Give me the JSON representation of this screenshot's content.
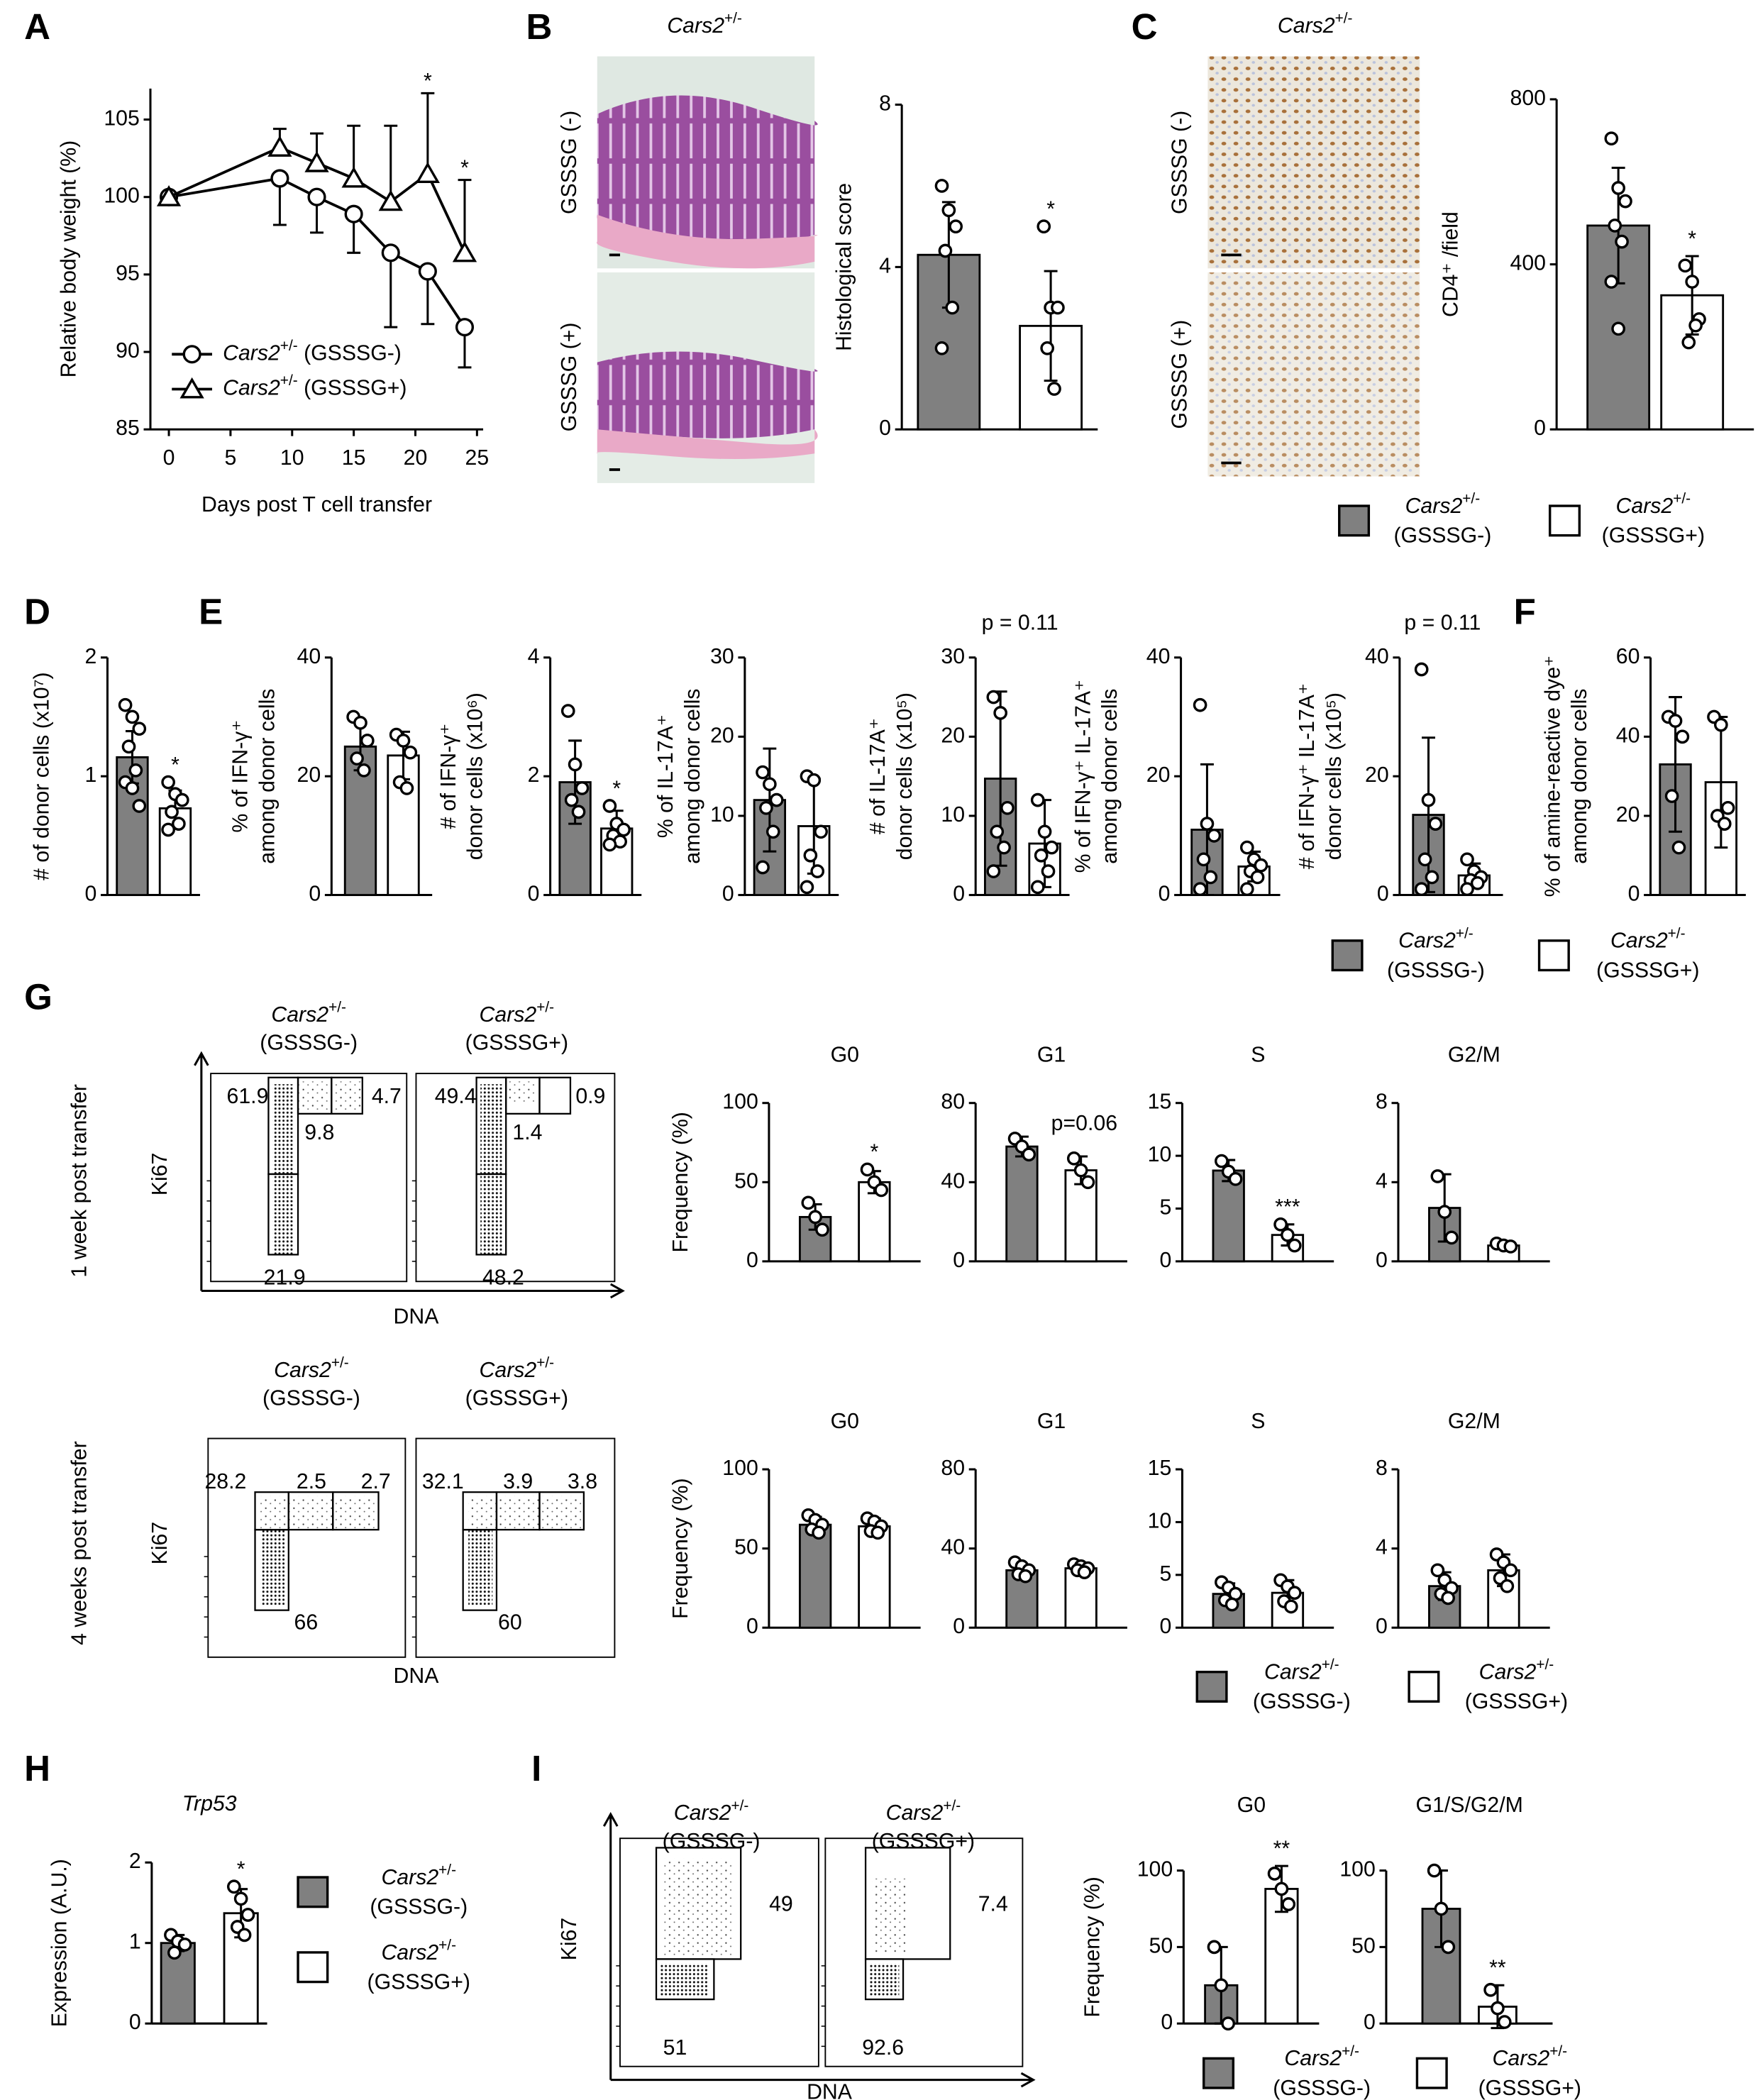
{
  "panels": [
    "A",
    "B",
    "C",
    "D",
    "E",
    "F",
    "G",
    "H",
    "I"
  ],
  "chart_data": [
    {
      "type": "line",
      "xlabel": "Days post T cell transfer",
      "ylabel": "Relative body weight (%)",
      "x": [
        0,
        9,
        12,
        15,
        18,
        21,
        24
      ],
      "xlim": [
        -1.5,
        25.5
      ],
      "xticks": [
        0,
        5,
        10,
        15,
        20,
        25
      ],
      "ylim": [
        85,
        107
      ],
      "yticks": [
        85,
        90,
        95,
        100,
        105
      ],
      "legend": "lower left",
      "series": [
        {
          "name": "Cars2+/- (GSSSG-)",
          "marker": "circle",
          "color": "#000000",
          "values": [
            100,
            101.2,
            100,
            98.9,
            96.4,
            95.2,
            91.6
          ],
          "errors": [
            0,
            3,
            2.3,
            2.5,
            4.8,
            3.4,
            2.6
          ],
          "error_direction": "down"
        },
        {
          "name": "Cars2+/- (GSSSG+)",
          "marker": "triangle",
          "color": "#000000",
          "values": [
            100,
            103.2,
            102.2,
            101.2,
            99.7,
            101.5,
            96.4
          ],
          "errors": [
            0,
            1.2,
            1.9,
            3.4,
            4.9,
            5.2,
            4.7
          ],
          "error_direction": "up"
        }
      ],
      "sig": [
        null,
        null,
        null,
        null,
        null,
        "*",
        "*"
      ]
    },
    {
      "type": "bar",
      "categories": [
        null,
        null
      ],
      "colors": [
        "#808080",
        "#ffffff"
      ],
      "values": [
        4.3,
        2.55
      ],
      "errors": [
        1.3,
        1.35
      ],
      "points": [
        [
          6,
          5.4,
          5,
          4.4,
          3,
          2
        ],
        [
          5,
          3,
          3,
          2,
          1
        ]
      ],
      "ylim": [
        0,
        8
      ],
      "yticks": [
        0,
        4,
        8
      ],
      "ylabel": [
        "Histological score"
      ],
      "sig": [
        null,
        "*"
      ]
    },
    {
      "type": "bar",
      "categories": [
        null,
        null
      ],
      "colors": [
        "#808080",
        "#ffffff"
      ],
      "values": [
        494,
        325
      ],
      "errors": [
        140,
        95
      ],
      "points": [
        [
          705,
          585,
          553,
          494,
          455,
          358,
          244
        ],
        [
          397,
          358,
          267,
          211,
          252
        ]
      ],
      "ylim": [
        0,
        800
      ],
      "yticks": [
        0,
        400,
        800
      ],
      "ylabel": [
        "CD4⁺ /field"
      ],
      "sig": [
        null,
        "*"
      ]
    },
    {
      "type": "bar",
      "categories": [
        null,
        null
      ],
      "colors": [
        "#808080",
        "#ffffff"
      ],
      "values": [
        1.16,
        0.73
      ],
      "errors": [
        0.22,
        0.15
      ],
      "points": [
        [
          1.6,
          1.5,
          1.4,
          1.25,
          1.05,
          0.95,
          0.9,
          0.75
        ],
        [
          0.95,
          0.85,
          0.8,
          0.7,
          0.6,
          0.55
        ]
      ],
      "ylim": [
        0,
        2
      ],
      "yticks": [
        0,
        1,
        2
      ],
      "ylabel": [
        "# of donor cells (x10⁷)"
      ],
      "sig": [
        null,
        "*"
      ]
    },
    {
      "type": "bar",
      "categories": [
        null,
        null
      ],
      "colors": [
        "#808080",
        "#ffffff"
      ],
      "values": [
        25,
        23.5
      ],
      "errors": [
        4,
        4
      ],
      "points": [
        [
          30,
          29,
          26,
          23,
          21
        ],
        [
          27,
          26,
          24,
          19,
          18
        ]
      ],
      "ylim": [
        0,
        40
      ],
      "yticks": [
        0,
        20,
        40
      ],
      "ylabel": [
        "% of IFN-γ⁺",
        "among donor cells"
      ]
    },
    {
      "type": "bar",
      "categories": [
        null,
        null
      ],
      "colors": [
        "#808080",
        "#ffffff"
      ],
      "values": [
        1.9,
        1.12
      ],
      "errors": [
        0.7,
        0.3
      ],
      "points": [
        [
          3.1,
          2.2,
          1.8,
          1.6,
          1.4
        ],
        [
          1.5,
          1.2,
          1.1,
          1,
          0.9,
          0.85
        ]
      ],
      "ylim": [
        0,
        4
      ],
      "yticks": [
        0,
        2,
        4
      ],
      "ylabel": [
        "# of IFN-γ⁺",
        "donor cells (x10⁶)"
      ],
      "sig": [
        null,
        "*"
      ]
    },
    {
      "type": "bar",
      "categories": [
        null,
        null
      ],
      "colors": [
        "#808080",
        "#ffffff"
      ],
      "values": [
        12,
        8.7
      ],
      "errors": [
        6.5,
        6
      ],
      "points": [
        [
          15.5,
          14,
          12,
          11,
          8,
          3.5
        ],
        [
          15,
          14.5,
          8,
          5,
          3,
          1
        ]
      ],
      "ylim": [
        0,
        30
      ],
      "yticks": [
        0,
        10,
        20,
        30
      ],
      "ylabel": [
        "% of IL-17A⁺",
        "among donor cells"
      ]
    },
    {
      "type": "bar",
      "categories": [
        null,
        null
      ],
      "colors": [
        "#808080",
        "#ffffff"
      ],
      "values": [
        14.7,
        6.5
      ],
      "errors": [
        11,
        5.5
      ],
      "points": [
        [
          25,
          23,
          11,
          8,
          6,
          3
        ],
        [
          12,
          8,
          6,
          5,
          3,
          1
        ]
      ],
      "ylim": [
        0,
        30
      ],
      "yticks": [
        0,
        10,
        20,
        30
      ],
      "ylabel": [
        "# of IL-17A⁺",
        "donor cells (x10⁵)"
      ],
      "note": "p = 0.11"
    },
    {
      "type": "bar",
      "categories": [
        null,
        null
      ],
      "colors": [
        "#808080",
        "#ffffff"
      ],
      "values": [
        11,
        4.8
      ],
      "errors": [
        11,
        2.5
      ],
      "points": [
        [
          32,
          12,
          10,
          6,
          3,
          1
        ],
        [
          8,
          6,
          5,
          4,
          3,
          1
        ]
      ],
      "ylim": [
        0,
        40
      ],
      "yticks": [
        0,
        20,
        40
      ],
      "ylabel": [
        "% of IFN-γ⁺ IL-17A⁺",
        "among donor cells"
      ]
    },
    {
      "type": "bar",
      "categories": [
        null,
        null
      ],
      "colors": [
        "#808080",
        "#ffffff"
      ],
      "values": [
        13.5,
        3.3
      ],
      "errors": [
        13,
        2
      ],
      "points": [
        [
          38,
          16,
          12,
          6,
          3,
          1
        ],
        [
          6,
          4,
          3,
          2.5,
          2,
          1
        ]
      ],
      "ylim": [
        0,
        40
      ],
      "yticks": [
        0,
        20,
        40
      ],
      "ylabel": [
        "# of IFN-γ⁺ IL-17A⁺",
        "donor cells (x10⁵)"
      ],
      "note": "p = 0.11"
    },
    {
      "type": "bar",
      "categories": [
        null,
        null
      ],
      "colors": [
        "#808080",
        "#ffffff"
      ],
      "values": [
        33,
        28.5
      ],
      "errors": [
        17,
        16.5
      ],
      "points": [
        [
          45,
          44,
          40,
          25,
          12
        ],
        [
          45,
          43,
          22,
          20,
          18
        ]
      ],
      "ylim": [
        0,
        60
      ],
      "yticks": [
        0,
        20,
        40,
        60
      ],
      "ylabel": [
        "% of amine-reactive dye⁺",
        "among donor cells"
      ]
    },
    {
      "type": "bar",
      "title": "G0",
      "categories": [
        null,
        null
      ],
      "colors": [
        "#808080",
        "#ffffff"
      ],
      "values": [
        28,
        50
      ],
      "errors": [
        8,
        7
      ],
      "points": [
        [
          37,
          28,
          20
        ],
        [
          58,
          50,
          45
        ]
      ],
      "ylim": [
        0,
        100
      ],
      "yticks": [
        0,
        50,
        100
      ],
      "ylabel": [
        "Frequency (%)"
      ],
      "sig": [
        null,
        "*"
      ]
    },
    {
      "type": "bar",
      "title": "G1",
      "categories": [
        null,
        null
      ],
      "colors": [
        "#808080",
        "#ffffff"
      ],
      "values": [
        58,
        46
      ],
      "errors": [
        5,
        7
      ],
      "points": [
        [
          62,
          58,
          54
        ],
        [
          52,
          46,
          40
        ]
      ],
      "ylim": [
        0,
        80
      ],
      "yticks": [
        0,
        40,
        80
      ],
      "note": "p=0.06"
    },
    {
      "type": "bar",
      "title": "S",
      "categories": [
        null,
        null
      ],
      "colors": [
        "#808080",
        "#ffffff"
      ],
      "values": [
        8.6,
        2.5
      ],
      "errors": [
        1,
        1
      ],
      "points": [
        [
          9.5,
          8.5,
          7.8
        ],
        [
          3.5,
          2.5,
          1.5
        ]
      ],
      "ylim": [
        0,
        15
      ],
      "yticks": [
        0,
        5,
        10,
        15
      ],
      "sig": [
        null,
        "***"
      ]
    },
    {
      "type": "bar",
      "title": "G2/M",
      "categories": [
        null,
        null
      ],
      "colors": [
        "#808080",
        "#ffffff"
      ],
      "values": [
        2.7,
        0.8
      ],
      "errors": [
        1.7,
        0.1
      ],
      "points": [
        [
          4.3,
          2.5,
          1.2
        ],
        [
          0.9,
          0.8,
          0.75
        ]
      ],
      "ylim": [
        0,
        8
      ],
      "yticks": [
        0,
        4,
        8
      ]
    },
    {
      "type": "bar",
      "title": "G0",
      "categories": [
        null,
        null
      ],
      "colors": [
        "#808080",
        "#ffffff"
      ],
      "values": [
        65,
        64
      ],
      "errors": [
        5,
        5
      ],
      "points": [
        [
          71,
          68,
          65,
          62,
          60
        ],
        [
          69,
          67,
          64,
          61,
          60
        ]
      ],
      "ylim": [
        0,
        100
      ],
      "yticks": [
        0,
        50,
        100
      ],
      "ylabel": [
        "Frequency (%)"
      ]
    },
    {
      "type": "bar",
      "title": "G1",
      "categories": [
        null,
        null
      ],
      "colors": [
        "#808080",
        "#ffffff"
      ],
      "values": [
        29,
        30
      ],
      "errors": [
        3,
        2
      ],
      "points": [
        [
          33,
          31,
          29,
          27,
          26
        ],
        [
          32,
          31,
          30,
          29,
          28
        ]
      ],
      "ylim": [
        0,
        80
      ],
      "yticks": [
        0,
        40,
        80
      ]
    },
    {
      "type": "bar",
      "title": "S",
      "categories": [
        null,
        null
      ],
      "colors": [
        "#808080",
        "#ffffff"
      ],
      "values": [
        3.2,
        3.3
      ],
      "errors": [
        1,
        1.2
      ],
      "points": [
        [
          4.3,
          3.8,
          3.2,
          2.6,
          2.2
        ],
        [
          4.5,
          3.9,
          3.3,
          2.5,
          2
        ]
      ],
      "ylim": [
        0,
        15
      ],
      "yticks": [
        0,
        5,
        10,
        15
      ]
    },
    {
      "type": "bar",
      "title": "G2/M",
      "categories": [
        null,
        null
      ],
      "colors": [
        "#808080",
        "#ffffff"
      ],
      "values": [
        2.1,
        2.9
      ],
      "errors": [
        0.7,
        0.8
      ],
      "points": [
        [
          2.9,
          2.4,
          2,
          1.7,
          1.5
        ],
        [
          3.7,
          3.3,
          2.9,
          2.5,
          2.1
        ]
      ],
      "ylim": [
        0,
        8
      ],
      "yticks": [
        0,
        4,
        8
      ]
    },
    {
      "type": "bar",
      "title": "Trp53",
      "categories": [
        null,
        null
      ],
      "colors": [
        "#808080",
        "#ffffff"
      ],
      "values": [
        1.0,
        1.37
      ],
      "errors": [
        0.1,
        0.3
      ],
      "points": [
        [
          1.1,
          1.02,
          0.98,
          0.88
        ],
        [
          1.7,
          1.55,
          1.35,
          1.2,
          1.1
        ]
      ],
      "ylim": [
        0,
        2
      ],
      "yticks": [
        0,
        1,
        2
      ],
      "ylabel": [
        "Expression (A.U.)"
      ],
      "sig": [
        null,
        "*"
      ]
    },
    {
      "type": "bar",
      "title": "G0",
      "categories": [
        null,
        null
      ],
      "colors": [
        "#808080",
        "#ffffff"
      ],
      "values": [
        25,
        88
      ],
      "errors": [
        25,
        15
      ],
      "points": [
        [
          50,
          25,
          0
        ],
        [
          98,
          88,
          78
        ]
      ],
      "ylim": [
        0,
        100
      ],
      "yticks": [
        0,
        50,
        100
      ],
      "ylabel": [
        "Frequency (%)"
      ],
      "sig": [
        null,
        "**"
      ]
    },
    {
      "type": "bar",
      "title": "G1/S/G2/M",
      "categories": [
        null,
        null
      ],
      "colors": [
        "#808080",
        "#ffffff"
      ],
      "values": [
        75,
        11
      ],
      "errors": [
        25,
        14
      ],
      "points": [
        [
          100,
          75,
          50
        ],
        [
          22,
          10,
          1
        ]
      ],
      "ylim": [
        0,
        100
      ],
      "yticks": [
        0,
        50,
        100
      ],
      "sig": [
        null,
        "**"
      ]
    }
  ],
  "legends": [
    {
      "entries": [
        {
          "lines": [
            "Cars2+/-",
            "(GSSSG-)"
          ],
          "color": "#808080"
        },
        {
          "lines": [
            "Cars2+/-",
            "(GSSSG+)"
          ],
          "color": "#ffffff"
        }
      ]
    },
    {
      "entries": [
        {
          "lines": [
            "Cars2+/-",
            "(GSSSG-)"
          ],
          "color": "#808080"
        },
        {
          "lines": [
            "Cars2+/-",
            "(GSSSG+)"
          ],
          "color": "#ffffff"
        }
      ]
    },
    {
      "entries": [
        {
          "lines": [
            "Cars2+/-",
            "(GSSSG-)"
          ],
          "color": "#808080"
        },
        {
          "lines": [
            "Cars2+/-",
            "(GSSSG+)"
          ],
          "color": "#ffffff"
        }
      ]
    },
    {
      "entries": [
        {
          "lines": [
            "Cars2+/-",
            "(GSSSG-)"
          ],
          "color": "#808080"
        },
        {
          "lines": [
            "Cars2+/-",
            "(GSSSG+)"
          ],
          "color": "#ffffff"
        }
      ]
    },
    {
      "entries": [
        {
          "lines": [
            "Cars2+/-",
            "(GSSSG-)"
          ],
          "color": "#808080"
        },
        {
          "lines": [
            "Cars2+/-",
            "(GSSSG+)"
          ],
          "color": "#ffffff"
        }
      ]
    }
  ],
  "histology": [
    {
      "title": "Cars2+/-",
      "rows": [
        "GSSSG (-)",
        "GSSSG (+)"
      ]
    },
    {
      "title": "Cars2+/-",
      "rows": [
        "GSSSG (-)",
        "GSSSG (+)"
      ]
    }
  ],
  "flow": [
    {
      "side_label": "1 week post transfer",
      "x_label": "DNA",
      "y_label": "Ki67",
      "plots": [
        {
          "title": [
            "Cars2+/-",
            "(GSSSG-)"
          ],
          "gates": [
            "61.9",
            "9.8",
            "4.7",
            "21.9"
          ]
        },
        {
          "title": [
            "Cars2+/-",
            "(GSSSG+)"
          ],
          "gates": [
            "49.4",
            "1.4",
            "0.9",
            "48.2"
          ]
        }
      ]
    },
    {
      "side_label": "4 weeks post transfer",
      "x_label": "DNA",
      "y_label": "Ki67",
      "plots": [
        {
          "title": [
            "Cars2+/-",
            "(GSSSG-)"
          ],
          "gates": [
            "28.2",
            "2.5",
            "2.7",
            "66"
          ]
        },
        {
          "title": [
            "Cars2+/-",
            "(GSSSG+)"
          ],
          "gates": [
            "32.1",
            "3.9",
            "3.8",
            "60"
          ]
        }
      ]
    },
    {
      "x_label": "DNA",
      "y_label": "Ki67",
      "plots": [
        {
          "title": [
            "Cars2+/-",
            "(GSSSG-)"
          ],
          "gates": [
            "49",
            "51"
          ]
        },
        {
          "title": [
            "Cars2+/-",
            "(GSSSG+)"
          ],
          "gates": [
            "7.4",
            "92.6"
          ]
        }
      ]
    }
  ]
}
